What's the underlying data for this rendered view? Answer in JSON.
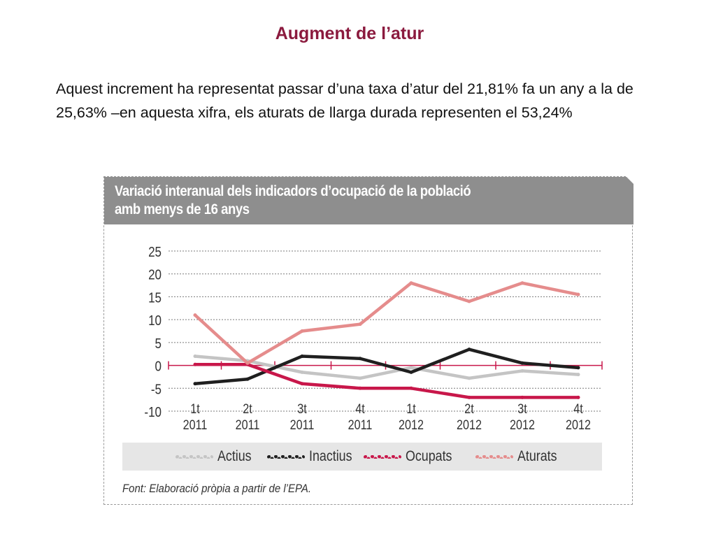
{
  "slide": {
    "title": "Augment de l’atur",
    "body": "Aquest increment ha representat passar d’una taxa d’atur del 21,81% fa un any a la de 25,63% –en aquesta xifra, els aturats de llarga durada representen el 53,24%"
  },
  "figure": {
    "title_line1": "Variació interanual dels indicadors d’ocupació de la població",
    "title_line2": "amb menys de 16 anys",
    "source": "Font: Elaboració pròpia a partir de l’EPA."
  },
  "chart_data": {
    "type": "line",
    "title": "Variació interanual dels indicadors d’ocupació de la població amb menys de 16 anys",
    "categories": [
      "1t|2011",
      "2t|2011",
      "3t|2011",
      "4t|2011",
      "1t|2012",
      "2t|2012",
      "3t|2012",
      "4t|2012"
    ],
    "ylim": [
      -10,
      25
    ],
    "yticks": [
      25,
      20,
      15,
      10,
      5,
      0,
      -5,
      -10
    ],
    "ytick_labels": [
      "25",
      "20",
      "15",
      "10",
      "5",
      "0",
      "-5",
      "-10"
    ],
    "grid": true,
    "legend_position": "bottom",
    "series": [
      {
        "name": "Actius",
        "color": "#c4c4c4",
        "values": [
          2,
          1,
          -1.5,
          -2.8,
          -0.5,
          -2.8,
          -1.2,
          -2
        ]
      },
      {
        "name": "Inactius",
        "color": "#1f1f1f",
        "values": [
          -4,
          -3,
          2,
          1.5,
          -1.5,
          3.5,
          0.5,
          -0.5
        ]
      },
      {
        "name": "Ocupats",
        "color": "#c8174a",
        "values": [
          0.2,
          0.2,
          -4,
          -5,
          -5,
          -7,
          -7,
          -7
        ]
      },
      {
        "name": "Aturats",
        "color": "#e58c8c",
        "values": [
          11,
          0.5,
          7.5,
          9,
          18,
          14,
          18,
          15.5
        ]
      }
    ]
  }
}
